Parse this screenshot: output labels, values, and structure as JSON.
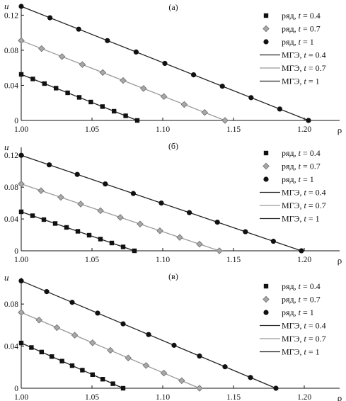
{
  "chart_data": [
    {
      "type": "line",
      "panel_label": "(а)",
      "xlabel": "ρ",
      "ylabel": "u",
      "xlim": [
        1.0,
        1.225
      ],
      "ylim": [
        0,
        0.13
      ],
      "xticks": [
        "1.00",
        "1.05",
        "1.10",
        "1.15",
        "1.20"
      ],
      "xtick_values": [
        1.0,
        1.05,
        1.1,
        1.15,
        1.2
      ],
      "yticks": [
        "0",
        "0.04",
        "0.08",
        "0.12"
      ],
      "ytick_values": [
        0,
        0.04,
        0.08,
        0.12
      ],
      "grid": false,
      "legend_position": "top-right",
      "series": [
        {
          "name": "ряд, t = 0.4",
          "kind": "markers",
          "marker": "square",
          "color": "#111111",
          "x": [
            1.0,
            1.0082,
            1.0164,
            1.0246,
            1.0328,
            1.041,
            1.0492,
            1.0574,
            1.0656,
            1.0738,
            1.082
          ],
          "y": [
            0.0525,
            0.0473,
            0.042,
            0.0368,
            0.0315,
            0.0263,
            0.021,
            0.0158,
            0.0105,
            0.0053,
            0
          ]
        },
        {
          "name": "ряд, t = 0.7",
          "kind": "markers",
          "marker": "diamond",
          "color": "#9a9a9a",
          "x": [
            1.0,
            1.0144,
            1.0288,
            1.0432,
            1.0576,
            1.072,
            1.0864,
            1.1008,
            1.1152,
            1.1296,
            1.144
          ],
          "y": [
            0.091,
            0.0819,
            0.0728,
            0.0637,
            0.0546,
            0.0455,
            0.0364,
            0.0273,
            0.0182,
            0.0091,
            0
          ]
        },
        {
          "name": "ряд, t = 1",
          "kind": "markers",
          "marker": "circle",
          "color": "#111111",
          "x": [
            1.0,
            1.0203,
            1.0406,
            1.0609,
            1.0812,
            1.1015,
            1.1218,
            1.1421,
            1.1624,
            1.1827,
            1.203
          ],
          "y": [
            0.13,
            0.117,
            0.104,
            0.091,
            0.078,
            0.065,
            0.052,
            0.039,
            0.026,
            0.013,
            0
          ]
        },
        {
          "name": "МГЭ, t = 0.4",
          "kind": "line",
          "color": "#222222",
          "x": [
            1.0,
            1.082
          ],
          "y": [
            0.0525,
            0
          ]
        },
        {
          "name": "МГЭ, t = 0.7",
          "kind": "line",
          "color": "#9a9a9a",
          "x": [
            1.0,
            1.144
          ],
          "y": [
            0.091,
            0
          ]
        },
        {
          "name": "МГЭ, t = 1",
          "kind": "line",
          "color": "#222222",
          "x": [
            1.0,
            1.203
          ],
          "y": [
            0.13,
            0
          ]
        }
      ]
    },
    {
      "type": "line",
      "panel_label": "(б)",
      "xlabel": "ρ",
      "ylabel": "u",
      "xlim": [
        1.0,
        1.225
      ],
      "ylim": [
        0,
        0.13
      ],
      "xticks": [
        "1.00",
        "1.05",
        "1.10",
        "1.15",
        "1.20"
      ],
      "xtick_values": [
        1.0,
        1.05,
        1.1,
        1.15,
        1.2
      ],
      "yticks": [
        "0",
        "0.04",
        "0.08",
        "0.12"
      ],
      "ytick_values": [
        0,
        0.04,
        0.08,
        0.12
      ],
      "grid": false,
      "legend_position": "top-right",
      "series": [
        {
          "name": "ряд, t = 0.4",
          "kind": "markers",
          "marker": "square",
          "color": "#111111",
          "x": [
            1.0,
            1.008,
            1.016,
            1.024,
            1.032,
            1.04,
            1.048,
            1.056,
            1.064,
            1.072,
            1.08
          ],
          "y": [
            0.049,
            0.0441,
            0.0392,
            0.0343,
            0.0294,
            0.0245,
            0.0196,
            0.0147,
            0.0098,
            0.0049,
            0
          ]
        },
        {
          "name": "ряд, t = 0.7",
          "kind": "markers",
          "marker": "diamond",
          "color": "#9a9a9a",
          "x": [
            1.0,
            1.014,
            1.028,
            1.042,
            1.056,
            1.07,
            1.084,
            1.098,
            1.112,
            1.126,
            1.14
          ],
          "y": [
            0.084,
            0.0756,
            0.0672,
            0.0588,
            0.0504,
            0.042,
            0.0336,
            0.0252,
            0.0168,
            0.0084,
            0
          ]
        },
        {
          "name": "ряд, t = 1",
          "kind": "markers",
          "marker": "circle",
          "color": "#111111",
          "x": [
            1.0,
            1.0198,
            1.0396,
            1.0594,
            1.0792,
            1.099,
            1.1188,
            1.1386,
            1.1584,
            1.1782,
            1.198
          ],
          "y": [
            0.12,
            0.108,
            0.096,
            0.084,
            0.072,
            0.06,
            0.048,
            0.036,
            0.024,
            0.012,
            0
          ]
        },
        {
          "name": "МГЭ, t = 0.4",
          "kind": "line",
          "color": "#222222",
          "x": [
            1.0,
            1.08
          ],
          "y": [
            0.049,
            0
          ]
        },
        {
          "name": "МГЭ, t = 0.7",
          "kind": "line",
          "color": "#9a9a9a",
          "x": [
            1.0,
            1.14
          ],
          "y": [
            0.084,
            0
          ]
        },
        {
          "name": "МГЭ, t = 1",
          "kind": "line",
          "color": "#222222",
          "x": [
            1.0,
            1.198
          ],
          "y": [
            0.12,
            0
          ]
        }
      ]
    },
    {
      "type": "line",
      "panel_label": "(в)",
      "xlabel": "ρ",
      "ylabel": "u",
      "xlim": [
        1.0,
        1.225
      ],
      "ylim": [
        0,
        0.105
      ],
      "xticks": [
        "1.00",
        "1.05",
        "1.10",
        "1.15",
        "1.20"
      ],
      "xtick_values": [
        1.0,
        1.05,
        1.1,
        1.15,
        1.2
      ],
      "yticks": [
        "0",
        "0.04",
        "0.08"
      ],
      "ytick_values": [
        0,
        0.04,
        0.08
      ],
      "grid": false,
      "legend_position": "top-right",
      "series": [
        {
          "name": "ряд, t = 0.4",
          "kind": "markers",
          "marker": "square",
          "color": "#111111",
          "x": [
            1.0,
            1.0072,
            1.0144,
            1.0216,
            1.0288,
            1.036,
            1.0432,
            1.0504,
            1.0576,
            1.0648,
            1.072
          ],
          "y": [
            0.043,
            0.0387,
            0.0344,
            0.0301,
            0.0258,
            0.0215,
            0.0172,
            0.0129,
            0.0086,
            0.0043,
            0
          ]
        },
        {
          "name": "ряд, t = 0.7",
          "kind": "markers",
          "marker": "diamond",
          "color": "#9a9a9a",
          "x": [
            1.0,
            1.0126,
            1.0252,
            1.0378,
            1.0504,
            1.063,
            1.0756,
            1.0882,
            1.1008,
            1.1134,
            1.126
          ],
          "y": [
            0.072,
            0.0648,
            0.0576,
            0.0504,
            0.0432,
            0.036,
            0.0288,
            0.0216,
            0.0144,
            0.0072,
            0
          ]
        },
        {
          "name": "ряд, t = 1",
          "kind": "markers",
          "marker": "circle",
          "color": "#111111",
          "x": [
            1.0,
            1.018,
            1.036,
            1.054,
            1.072,
            1.09,
            1.108,
            1.126,
            1.144,
            1.162,
            1.18
          ],
          "y": [
            0.102,
            0.0918,
            0.0816,
            0.0714,
            0.0612,
            0.051,
            0.0408,
            0.0306,
            0.0204,
            0.0102,
            0
          ]
        },
        {
          "name": "МГЭ, t = 0.4",
          "kind": "line",
          "color": "#222222",
          "x": [
            1.0,
            1.072
          ],
          "y": [
            0.043,
            0
          ]
        },
        {
          "name": "МГЭ, t = 0.7",
          "kind": "line",
          "color": "#9a9a9a",
          "x": [
            1.0,
            1.126
          ],
          "y": [
            0.072,
            0
          ]
        },
        {
          "name": "МГЭ, t = 1",
          "kind": "line",
          "color": "#222222",
          "x": [
            1.0,
            1.18
          ],
          "y": [
            0.102,
            0
          ]
        }
      ]
    }
  ]
}
